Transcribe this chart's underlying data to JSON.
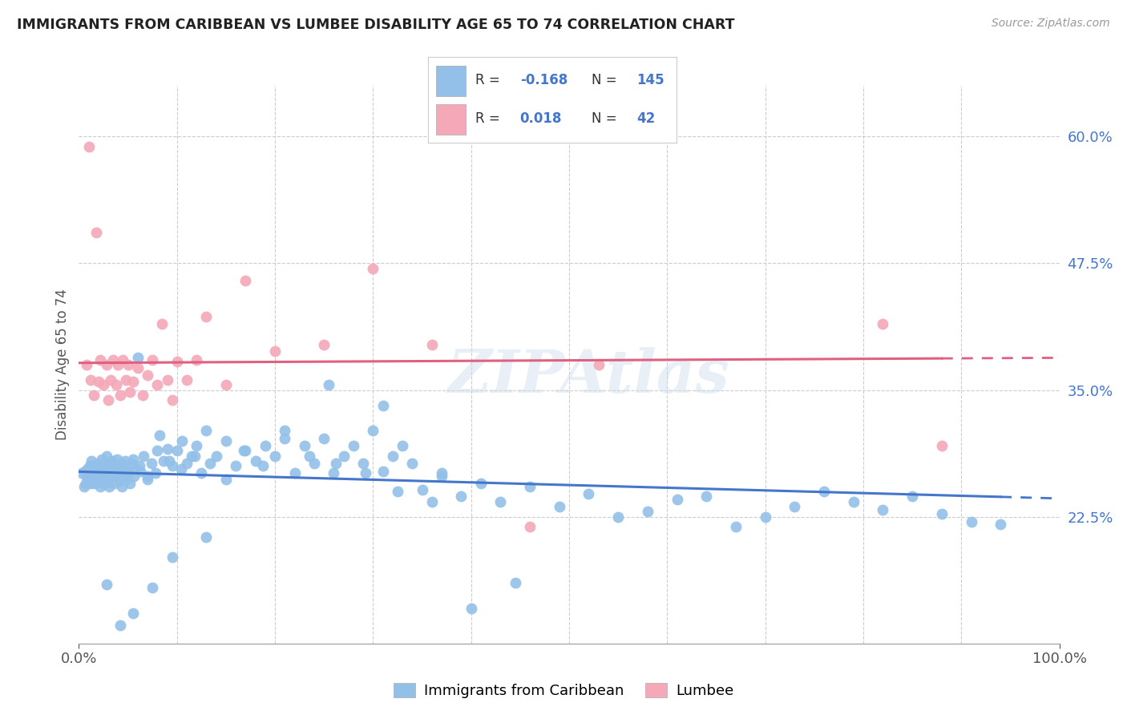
{
  "title": "IMMIGRANTS FROM CARIBBEAN VS LUMBEE DISABILITY AGE 65 TO 74 CORRELATION CHART",
  "source": "Source: ZipAtlas.com",
  "ylabel": "Disability Age 65 to 74",
  "ytick_labels": [
    "22.5%",
    "35.0%",
    "47.5%",
    "60.0%"
  ],
  "ytick_values": [
    0.225,
    0.35,
    0.475,
    0.6
  ],
  "xlim": [
    0.0,
    1.0
  ],
  "ylim": [
    0.1,
    0.65
  ],
  "legend_label1": "Immigrants from Caribbean",
  "legend_label2": "Lumbee",
  "R1": -0.168,
  "N1": 145,
  "R2": 0.018,
  "N2": 42,
  "blue_color": "#92C0E8",
  "pink_color": "#F4A8B8",
  "blue_line_color": "#4477CC",
  "pink_line_color": "#E06080",
  "watermark": "ZIPAtlas",
  "blue_scatter_x": [
    0.003,
    0.005,
    0.006,
    0.007,
    0.008,
    0.009,
    0.01,
    0.011,
    0.012,
    0.013,
    0.014,
    0.015,
    0.016,
    0.017,
    0.018,
    0.019,
    0.02,
    0.021,
    0.022,
    0.023,
    0.024,
    0.025,
    0.026,
    0.027,
    0.028,
    0.029,
    0.03,
    0.031,
    0.032,
    0.033,
    0.034,
    0.035,
    0.036,
    0.037,
    0.038,
    0.039,
    0.04,
    0.041,
    0.042,
    0.043,
    0.044,
    0.045,
    0.046,
    0.047,
    0.048,
    0.05,
    0.052,
    0.054,
    0.056,
    0.058,
    0.06,
    0.063,
    0.066,
    0.07,
    0.074,
    0.078,
    0.082,
    0.086,
    0.09,
    0.095,
    0.1,
    0.105,
    0.11,
    0.115,
    0.12,
    0.125,
    0.13,
    0.14,
    0.15,
    0.16,
    0.17,
    0.18,
    0.19,
    0.2,
    0.21,
    0.22,
    0.23,
    0.24,
    0.25,
    0.26,
    0.27,
    0.28,
    0.29,
    0.3,
    0.31,
    0.32,
    0.33,
    0.34,
    0.35,
    0.37,
    0.39,
    0.41,
    0.43,
    0.46,
    0.49,
    0.52,
    0.55,
    0.58,
    0.61,
    0.64,
    0.67,
    0.7,
    0.73,
    0.76,
    0.79,
    0.82,
    0.85,
    0.88,
    0.91,
    0.94,
    0.008,
    0.012,
    0.018,
    0.022,
    0.028,
    0.035,
    0.042,
    0.048,
    0.055,
    0.062,
    0.07,
    0.08,
    0.092,
    0.104,
    0.118,
    0.134,
    0.15,
    0.168,
    0.188,
    0.21,
    0.235,
    0.262,
    0.292,
    0.325,
    0.36,
    0.4,
    0.445,
    0.31,
    0.37,
    0.255,
    0.13,
    0.095,
    0.075,
    0.055,
    0.042,
    0.028
  ],
  "blue_scatter_y": [
    0.268,
    0.255,
    0.27,
    0.258,
    0.265,
    0.272,
    0.26,
    0.275,
    0.262,
    0.28,
    0.265,
    0.27,
    0.258,
    0.272,
    0.265,
    0.278,
    0.26,
    0.268,
    0.255,
    0.282,
    0.27,
    0.265,
    0.258,
    0.275,
    0.26,
    0.268,
    0.278,
    0.255,
    0.272,
    0.265,
    0.28,
    0.27,
    0.258,
    0.275,
    0.265,
    0.282,
    0.268,
    0.26,
    0.272,
    0.278,
    0.255,
    0.265,
    0.275,
    0.28,
    0.262,
    0.268,
    0.258,
    0.278,
    0.265,
    0.272,
    0.382,
    0.27,
    0.285,
    0.262,
    0.278,
    0.268,
    0.305,
    0.28,
    0.292,
    0.275,
    0.29,
    0.3,
    0.278,
    0.285,
    0.295,
    0.268,
    0.31,
    0.285,
    0.3,
    0.275,
    0.29,
    0.28,
    0.295,
    0.285,
    0.31,
    0.268,
    0.295,
    0.278,
    0.302,
    0.268,
    0.285,
    0.295,
    0.278,
    0.31,
    0.27,
    0.285,
    0.295,
    0.278,
    0.252,
    0.268,
    0.245,
    0.258,
    0.24,
    0.255,
    0.235,
    0.248,
    0.225,
    0.23,
    0.242,
    0.245,
    0.215,
    0.225,
    0.235,
    0.25,
    0.24,
    0.232,
    0.245,
    0.228,
    0.22,
    0.218,
    0.265,
    0.258,
    0.272,
    0.265,
    0.285,
    0.278,
    0.262,
    0.27,
    0.282,
    0.275,
    0.265,
    0.29,
    0.28,
    0.272,
    0.285,
    0.278,
    0.262,
    0.29,
    0.275,
    0.302,
    0.285,
    0.278,
    0.268,
    0.25,
    0.24,
    0.135,
    0.16,
    0.335,
    0.265,
    0.355,
    0.205,
    0.185,
    0.155,
    0.13,
    0.118,
    0.158
  ],
  "pink_scatter_x": [
    0.008,
    0.01,
    0.012,
    0.015,
    0.018,
    0.02,
    0.022,
    0.025,
    0.028,
    0.03,
    0.032,
    0.035,
    0.038,
    0.04,
    0.042,
    0.045,
    0.048,
    0.05,
    0.052,
    0.055,
    0.06,
    0.065,
    0.07,
    0.075,
    0.08,
    0.085,
    0.09,
    0.095,
    0.1,
    0.11,
    0.12,
    0.13,
    0.15,
    0.17,
    0.2,
    0.25,
    0.3,
    0.36,
    0.46,
    0.53,
    0.82,
    0.88
  ],
  "pink_scatter_y": [
    0.375,
    0.59,
    0.36,
    0.345,
    0.505,
    0.358,
    0.38,
    0.355,
    0.375,
    0.34,
    0.36,
    0.38,
    0.355,
    0.375,
    0.345,
    0.38,
    0.36,
    0.375,
    0.348,
    0.358,
    0.372,
    0.345,
    0.365,
    0.38,
    0.355,
    0.415,
    0.36,
    0.34,
    0.378,
    0.36,
    0.38,
    0.422,
    0.355,
    0.458,
    0.388,
    0.395,
    0.47,
    0.395,
    0.215,
    0.375,
    0.415,
    0.295
  ]
}
